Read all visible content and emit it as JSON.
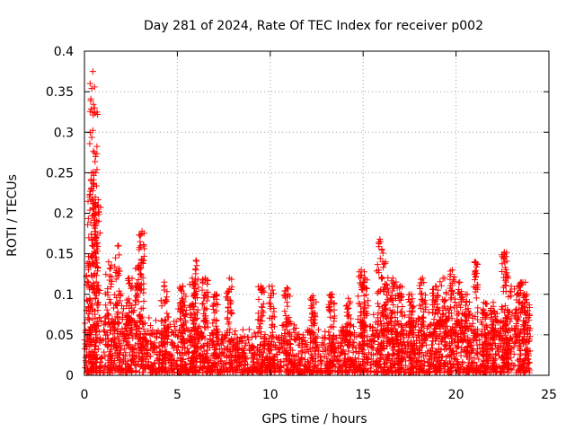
{
  "colors": {
    "points": "#ff0000",
    "axis": "#000000",
    "grid": "#a0a0a0"
  },
  "chart_data": {
    "type": "scatter",
    "title": "Day 281 of 2024, Rate Of TEC Index for receiver p002",
    "xlabel": "GPS time / hours",
    "ylabel": "ROTI / TECUs",
    "xlim": [
      0,
      25
    ],
    "ylim": [
      0,
      0.4
    ],
    "xticks": [
      0,
      5,
      10,
      15,
      20,
      25
    ],
    "xtick_labels": [
      "0",
      "5",
      "10",
      "15",
      "20",
      "25"
    ],
    "yticks": [
      0,
      0.05,
      0.1,
      0.15,
      0.2,
      0.25,
      0.3,
      0.35,
      0.4
    ],
    "ytick_labels": [
      "0",
      "0.05",
      "0.1",
      "0.15",
      "0.2",
      "0.25",
      "0.3",
      "0.35",
      "0.4"
    ],
    "grid": true,
    "marker": "+",
    "series": [
      {
        "name": "ROTI",
        "peaks": [
          {
            "x": 0.25,
            "y": 0.14
          },
          {
            "x": 0.35,
            "y": 0.24
          },
          {
            "x": 0.45,
            "y": 0.375
          },
          {
            "x": 0.55,
            "y": 0.33
          },
          {
            "x": 0.6,
            "y": 0.27
          },
          {
            "x": 0.7,
            "y": 0.21
          },
          {
            "x": 1.3,
            "y": 0.14
          },
          {
            "x": 1.8,
            "y": 0.16
          },
          {
            "x": 2.4,
            "y": 0.12
          },
          {
            "x": 2.9,
            "y": 0.135
          },
          {
            "x": 3.1,
            "y": 0.178
          },
          {
            "x": 4.3,
            "y": 0.115
          },
          {
            "x": 5.3,
            "y": 0.11
          },
          {
            "x": 5.8,
            "y": 0.12
          },
          {
            "x": 6.0,
            "y": 0.142
          },
          {
            "x": 6.5,
            "y": 0.12
          },
          {
            "x": 7.0,
            "y": 0.1
          },
          {
            "x": 7.8,
            "y": 0.12
          },
          {
            "x": 9.5,
            "y": 0.11
          },
          {
            "x": 10.1,
            "y": 0.11
          },
          {
            "x": 10.9,
            "y": 0.108
          },
          {
            "x": 12.3,
            "y": 0.098
          },
          {
            "x": 13.3,
            "y": 0.1
          },
          {
            "x": 14.2,
            "y": 0.095
          },
          {
            "x": 14.9,
            "y": 0.13
          },
          {
            "x": 15.1,
            "y": 0.12
          },
          {
            "x": 15.9,
            "y": 0.168
          },
          {
            "x": 16.2,
            "y": 0.14
          },
          {
            "x": 16.6,
            "y": 0.12
          },
          {
            "x": 17.0,
            "y": 0.11
          },
          {
            "x": 17.6,
            "y": 0.1
          },
          {
            "x": 18.2,
            "y": 0.12
          },
          {
            "x": 18.9,
            "y": 0.11
          },
          {
            "x": 19.3,
            "y": 0.12
          },
          {
            "x": 19.8,
            "y": 0.13
          },
          {
            "x": 20.2,
            "y": 0.115
          },
          {
            "x": 20.6,
            "y": 0.1
          },
          {
            "x": 21.0,
            "y": 0.14
          },
          {
            "x": 21.5,
            "y": 0.09
          },
          {
            "x": 22.0,
            "y": 0.09
          },
          {
            "x": 22.6,
            "y": 0.152
          },
          {
            "x": 22.8,
            "y": 0.12
          },
          {
            "x": 23.3,
            "y": 0.11
          },
          {
            "x": 23.6,
            "y": 0.115
          },
          {
            "x": 23.8,
            "y": 0.1
          }
        ],
        "baseline": [
          {
            "x": 0,
            "y": 0.035
          },
          {
            "x": 1,
            "y": 0.04
          },
          {
            "x": 2,
            "y": 0.05
          },
          {
            "x": 3,
            "y": 0.04
          },
          {
            "x": 4,
            "y": 0.035
          },
          {
            "x": 5,
            "y": 0.045
          },
          {
            "x": 6,
            "y": 0.04
          },
          {
            "x": 7,
            "y": 0.035
          },
          {
            "x": 8,
            "y": 0.03
          },
          {
            "x": 9,
            "y": 0.03
          },
          {
            "x": 10,
            "y": 0.03
          },
          {
            "x": 11,
            "y": 0.035
          },
          {
            "x": 12,
            "y": 0.03
          },
          {
            "x": 13,
            "y": 0.03
          },
          {
            "x": 14,
            "y": 0.035
          },
          {
            "x": 15,
            "y": 0.035
          },
          {
            "x": 16,
            "y": 0.045
          },
          {
            "x": 17,
            "y": 0.04
          },
          {
            "x": 18,
            "y": 0.045
          },
          {
            "x": 19,
            "y": 0.045
          },
          {
            "x": 20,
            "y": 0.045
          },
          {
            "x": 21,
            "y": 0.04
          },
          {
            "x": 22,
            "y": 0.04
          },
          {
            "x": 23,
            "y": 0.045
          },
          {
            "x": 24,
            "y": 0.04
          }
        ]
      }
    ]
  }
}
